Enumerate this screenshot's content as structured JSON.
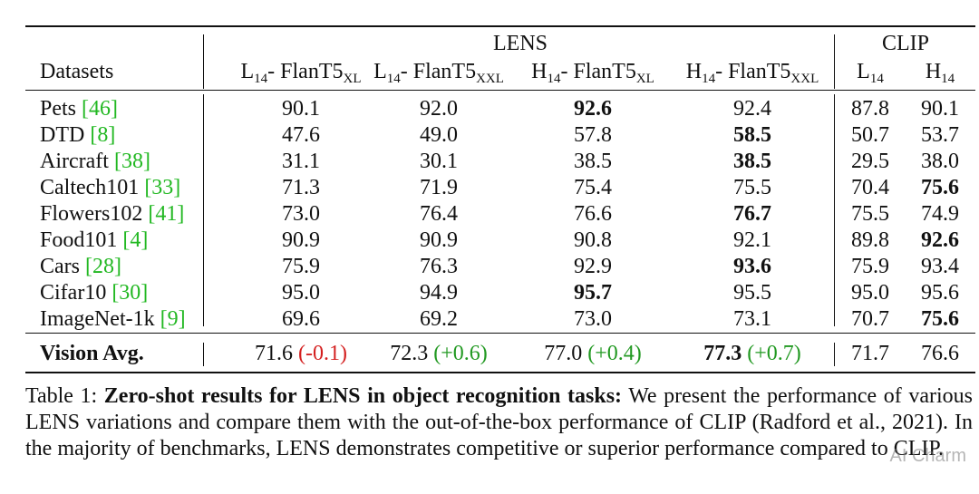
{
  "header": {
    "lens_label": "LENS",
    "clip_label": "CLIP",
    "datasets_label": "Datasets",
    "columns": [
      {
        "base": "L",
        "sub1": "14",
        "mid": "- FlanT5",
        "sub2": "XL"
      },
      {
        "base": "L",
        "sub1": "14",
        "mid": "- FlanT5",
        "sub2": "XXL"
      },
      {
        "base": "H",
        "sub1": "14",
        "mid": "- FlanT5",
        "sub2": "XL"
      },
      {
        "base": "H",
        "sub1": "14",
        "mid": "- FlanT5",
        "sub2": "XXL"
      },
      {
        "base": "L",
        "sub1": "14",
        "mid": "",
        "sub2": ""
      },
      {
        "base": "H",
        "sub1": "14",
        "mid": "",
        "sub2": ""
      }
    ]
  },
  "rows": [
    {
      "name": "Pets ",
      "ref": "[46]",
      "values": [
        "90.1",
        "92.0",
        "92.6",
        "92.4",
        "87.8",
        "90.1"
      ]
    },
    {
      "name": "DTD ",
      "ref": "[8]",
      "values": [
        "47.6",
        "49.0",
        "57.8",
        "58.5",
        "50.7",
        "53.7"
      ]
    },
    {
      "name": "Aircraft ",
      "ref": "[38]",
      "values": [
        "31.1",
        "30.1",
        "38.5",
        "38.5",
        "29.5",
        "38.0"
      ]
    },
    {
      "name": "Caltech101 ",
      "ref": "[33]",
      "values": [
        "71.3",
        "71.9",
        "75.4",
        "75.5",
        "70.4",
        "75.6"
      ]
    },
    {
      "name": "Flowers102 ",
      "ref": "[41]",
      "values": [
        "73.0",
        "76.4",
        "76.6",
        "76.7",
        "75.5",
        "74.9"
      ]
    },
    {
      "name": "Food101 ",
      "ref": "[4]",
      "values": [
        "90.9",
        "90.9",
        "90.8",
        "92.1",
        "89.8",
        "92.6"
      ]
    },
    {
      "name": "Cars ",
      "ref": "[28]",
      "values": [
        "75.9",
        "76.3",
        "92.9",
        "93.6",
        "75.9",
        "93.4"
      ]
    },
    {
      "name": "Cifar10 ",
      "ref": "[30]",
      "values": [
        "95.0",
        "94.9",
        "95.7",
        "95.5",
        "95.0",
        "95.6"
      ]
    },
    {
      "name": "ImageNet-1k ",
      "ref": "[9]",
      "values": [
        "69.6",
        "69.2",
        "73.0",
        "73.1",
        "70.7",
        "75.6"
      ]
    }
  ],
  "summary": {
    "name": "Vision Avg.",
    "values": [
      "71.6",
      "72.3",
      "77.0",
      "77.3",
      "71.7",
      "76.6"
    ],
    "deltas": [
      "(-0.1)",
      "(+0.6)",
      "(+0.4)",
      "(+0.7)",
      "",
      ""
    ]
  },
  "caption": {
    "prefix": "Table 1: ",
    "lead": "Zero-shot results for LENS in object recognition tasks:",
    "body": " We present the performance of various LENS variations and compare them with the out-of-the-box performance of CLIP (Radford et al., 2021). In the majority of benchmarks, LENS demonstrates competitive or superior performance compared to CLIP."
  },
  "watermark": "AI Charm",
  "colors": {
    "ref": "#22b822",
    "negative": "#d42020",
    "positive": "#229922",
    "text": "#111111"
  }
}
